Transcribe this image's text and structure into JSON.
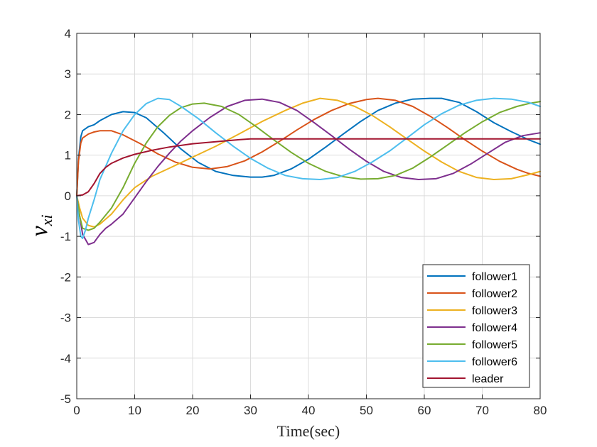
{
  "chart_data": {
    "type": "line",
    "xlabel": "Time(sec)",
    "ylabel_main": "v",
    "ylabel_sub": "xi",
    "xlim": [
      0,
      80
    ],
    "ylim": [
      -5,
      4
    ],
    "xticks": [
      0,
      10,
      20,
      30,
      40,
      50,
      60,
      70,
      80
    ],
    "yticks": [
      -5,
      -4,
      -3,
      -2,
      -1,
      0,
      1,
      2,
      3,
      4
    ],
    "grid": true,
    "legend_position": "bottom-right",
    "series": [
      {
        "name": "follower1",
        "color": "#0072BD",
        "points": [
          [
            0,
            0
          ],
          [
            0.3,
            0.9
          ],
          [
            0.7,
            1.45
          ],
          [
            1,
            1.6
          ],
          [
            2,
            1.7
          ],
          [
            3,
            1.75
          ],
          [
            4,
            1.85
          ],
          [
            6,
            2.0
          ],
          [
            8,
            2.07
          ],
          [
            10,
            2.05
          ],
          [
            12,
            1.92
          ],
          [
            15,
            1.55
          ],
          [
            18,
            1.15
          ],
          [
            21,
            0.82
          ],
          [
            24,
            0.6
          ],
          [
            27,
            0.5
          ],
          [
            30,
            0.46
          ],
          [
            32,
            0.46
          ],
          [
            34,
            0.5
          ],
          [
            37,
            0.66
          ],
          [
            40,
            0.9
          ],
          [
            43,
            1.2
          ],
          [
            46,
            1.52
          ],
          [
            49,
            1.83
          ],
          [
            52,
            2.1
          ],
          [
            55,
            2.28
          ],
          [
            58,
            2.38
          ],
          [
            61,
            2.4
          ],
          [
            63,
            2.4
          ],
          [
            66,
            2.3
          ],
          [
            69,
            2.07
          ],
          [
            72,
            1.8
          ],
          [
            75,
            1.58
          ],
          [
            78,
            1.38
          ],
          [
            80,
            1.27
          ]
        ]
      },
      {
        "name": "follower2",
        "color": "#D95319",
        "points": [
          [
            0,
            0
          ],
          [
            0.3,
            0.85
          ],
          [
            0.7,
            1.3
          ],
          [
            1,
            1.42
          ],
          [
            2,
            1.52
          ],
          [
            3,
            1.57
          ],
          [
            4,
            1.6
          ],
          [
            6,
            1.6
          ],
          [
            8,
            1.5
          ],
          [
            11,
            1.28
          ],
          [
            14,
            1.03
          ],
          [
            17,
            0.83
          ],
          [
            20,
            0.7
          ],
          [
            23,
            0.66
          ],
          [
            26,
            0.72
          ],
          [
            29,
            0.86
          ],
          [
            32,
            1.08
          ],
          [
            35,
            1.34
          ],
          [
            38,
            1.62
          ],
          [
            41,
            1.88
          ],
          [
            44,
            2.1
          ],
          [
            47,
            2.27
          ],
          [
            50,
            2.37
          ],
          [
            52,
            2.4
          ],
          [
            55,
            2.35
          ],
          [
            58,
            2.2
          ],
          [
            61,
            1.96
          ],
          [
            64,
            1.68
          ],
          [
            67,
            1.38
          ],
          [
            70,
            1.1
          ],
          [
            73,
            0.85
          ],
          [
            76,
            0.65
          ],
          [
            78,
            0.55
          ],
          [
            80,
            0.48
          ]
        ]
      },
      {
        "name": "follower3",
        "color": "#EDB120",
        "points": [
          [
            0,
            0
          ],
          [
            0.5,
            -0.3
          ],
          [
            1,
            -0.55
          ],
          [
            2,
            -0.73
          ],
          [
            3,
            -0.77
          ],
          [
            4,
            -0.7
          ],
          [
            6,
            -0.45
          ],
          [
            8,
            -0.1
          ],
          [
            10,
            0.2
          ],
          [
            13,
            0.48
          ],
          [
            16,
            0.68
          ],
          [
            20,
            0.95
          ],
          [
            24,
            1.22
          ],
          [
            28,
            1.52
          ],
          [
            32,
            1.83
          ],
          [
            36,
            2.1
          ],
          [
            39,
            2.28
          ],
          [
            42,
            2.4
          ],
          [
            45,
            2.35
          ],
          [
            48,
            2.2
          ],
          [
            51,
            1.98
          ],
          [
            54,
            1.7
          ],
          [
            57,
            1.4
          ],
          [
            60,
            1.1
          ],
          [
            63,
            0.83
          ],
          [
            66,
            0.6
          ],
          [
            69,
            0.45
          ],
          [
            72,
            0.4
          ],
          [
            75,
            0.42
          ],
          [
            78,
            0.52
          ],
          [
            80,
            0.6
          ]
        ]
      },
      {
        "name": "follower4",
        "color": "#7E2F8E",
        "points": [
          [
            0,
            0
          ],
          [
            0.5,
            -0.5
          ],
          [
            1,
            -0.95
          ],
          [
            2,
            -1.2
          ],
          [
            3,
            -1.15
          ],
          [
            4,
            -0.95
          ],
          [
            5,
            -0.8
          ],
          [
            6,
            -0.7
          ],
          [
            8,
            -0.45
          ],
          [
            10,
            -0.05
          ],
          [
            12,
            0.35
          ],
          [
            14,
            0.72
          ],
          [
            16,
            1.05
          ],
          [
            18,
            1.35
          ],
          [
            20,
            1.6
          ],
          [
            23,
            1.93
          ],
          [
            26,
            2.2
          ],
          [
            29,
            2.35
          ],
          [
            32,
            2.38
          ],
          [
            35,
            2.3
          ],
          [
            38,
            2.1
          ],
          [
            41,
            1.8
          ],
          [
            44,
            1.48
          ],
          [
            47,
            1.15
          ],
          [
            50,
            0.85
          ],
          [
            53,
            0.6
          ],
          [
            56,
            0.45
          ],
          [
            59,
            0.4
          ],
          [
            62,
            0.42
          ],
          [
            65,
            0.55
          ],
          [
            68,
            0.78
          ],
          [
            71,
            1.05
          ],
          [
            74,
            1.32
          ],
          [
            77,
            1.48
          ],
          [
            80,
            1.55
          ]
        ]
      },
      {
        "name": "follower5",
        "color": "#77AC30",
        "points": [
          [
            0,
            0
          ],
          [
            0.5,
            -0.5
          ],
          [
            1,
            -0.8
          ],
          [
            2,
            -0.85
          ],
          [
            3,
            -0.8
          ],
          [
            4,
            -0.65
          ],
          [
            6,
            -0.3
          ],
          [
            8,
            0.2
          ],
          [
            10,
            0.8
          ],
          [
            12,
            1.3
          ],
          [
            14,
            1.7
          ],
          [
            16,
            1.98
          ],
          [
            18,
            2.17
          ],
          [
            20,
            2.26
          ],
          [
            22,
            2.28
          ],
          [
            25,
            2.2
          ],
          [
            28,
            2.0
          ],
          [
            31,
            1.7
          ],
          [
            34,
            1.38
          ],
          [
            37,
            1.07
          ],
          [
            40,
            0.8
          ],
          [
            43,
            0.6
          ],
          [
            46,
            0.47
          ],
          [
            49,
            0.41
          ],
          [
            52,
            0.42
          ],
          [
            55,
            0.5
          ],
          [
            58,
            0.68
          ],
          [
            61,
            0.95
          ],
          [
            64,
            1.25
          ],
          [
            67,
            1.55
          ],
          [
            70,
            1.82
          ],
          [
            73,
            2.05
          ],
          [
            76,
            2.2
          ],
          [
            78,
            2.27
          ],
          [
            80,
            2.32
          ]
        ]
      },
      {
        "name": "follower6",
        "color": "#4DBEEE",
        "points": [
          [
            0,
            0
          ],
          [
            0.3,
            -0.6
          ],
          [
            0.7,
            -1.0
          ],
          [
            1,
            -1.05
          ],
          [
            1.5,
            -0.85
          ],
          [
            2,
            -0.55
          ],
          [
            3,
            -0.1
          ],
          [
            4,
            0.4
          ],
          [
            6,
            1.05
          ],
          [
            8,
            1.6
          ],
          [
            10,
            2.0
          ],
          [
            12,
            2.27
          ],
          [
            14,
            2.4
          ],
          [
            16,
            2.37
          ],
          [
            18,
            2.2
          ],
          [
            21,
            1.9
          ],
          [
            24,
            1.55
          ],
          [
            27,
            1.22
          ],
          [
            30,
            0.92
          ],
          [
            33,
            0.68
          ],
          [
            36,
            0.5
          ],
          [
            39,
            0.42
          ],
          [
            42,
            0.4
          ],
          [
            45,
            0.45
          ],
          [
            48,
            0.6
          ],
          [
            51,
            0.83
          ],
          [
            54,
            1.1
          ],
          [
            57,
            1.42
          ],
          [
            60,
            1.75
          ],
          [
            63,
            2.02
          ],
          [
            66,
            2.23
          ],
          [
            69,
            2.35
          ],
          [
            72,
            2.4
          ],
          [
            75,
            2.38
          ],
          [
            78,
            2.3
          ],
          [
            80,
            2.2
          ]
        ]
      },
      {
        "name": "leader",
        "color": "#A2142F",
        "points": [
          [
            0,
            0
          ],
          [
            1,
            0.02
          ],
          [
            2,
            0.1
          ],
          [
            3,
            0.3
          ],
          [
            4,
            0.55
          ],
          [
            5,
            0.7
          ],
          [
            6,
            0.8
          ],
          [
            8,
            0.93
          ],
          [
            10,
            1.02
          ],
          [
            13,
            1.12
          ],
          [
            16,
            1.2
          ],
          [
            20,
            1.28
          ],
          [
            24,
            1.33
          ],
          [
            28,
            1.38
          ],
          [
            30,
            1.4
          ],
          [
            35,
            1.4
          ],
          [
            40,
            1.4
          ],
          [
            50,
            1.4
          ],
          [
            60,
            1.4
          ],
          [
            70,
            1.4
          ],
          [
            80,
            1.4
          ]
        ]
      }
    ]
  }
}
